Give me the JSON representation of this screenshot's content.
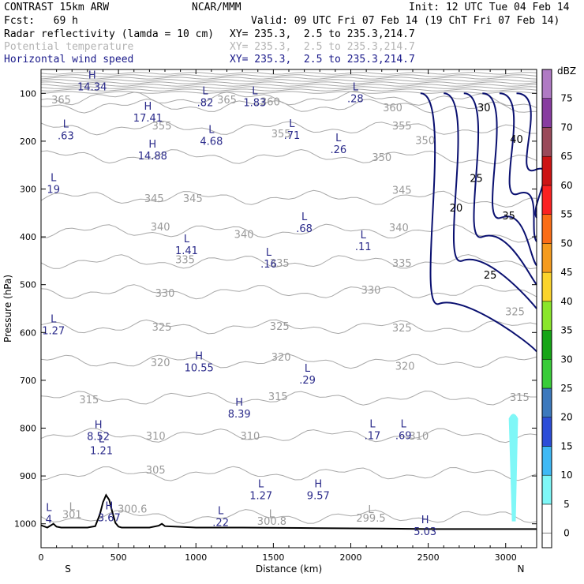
{
  "header": {
    "left1": "CONTRAST 15km ARW",
    "center1": "NCAR/MMM",
    "right1": "Init: 12 UTC Tue 04 Feb 14",
    "left2": "Fcst:   69 h",
    "right2": "Valid: 09 UTC Fri 07 Feb 14 (19 ChT Fri 07 Feb 14)",
    "field1_name": "Radar reflectivity (lamda = 10 cm)",
    "field1_xy": "XY= 235.3,  2.5 to 235.3,214.7",
    "field2_name": "Potential temperature",
    "field2_xy": "XY= 235.3,  2.5 to 235.3,214.7",
    "field3_name": "Horizontal wind speed",
    "field3_xy": "XY= 235.3,  2.5 to 235.3,214.7"
  },
  "colors": {
    "wind_label": "#2a2a8a",
    "theta": "#a8a8a8",
    "radar_contour": "#0a1070",
    "terrain": "#000000"
  },
  "chart_data": {
    "type": "cross-section",
    "xlabel": "Distance (km)",
    "ylabel": "Pressure (hPa)",
    "xlim": [
      0,
      3200
    ],
    "ylim": [
      1050,
      50
    ],
    "xticks": [
      0,
      500,
      1000,
      1500,
      2000,
      2500,
      3000
    ],
    "yticks": [
      100,
      200,
      300,
      400,
      500,
      600,
      700,
      800,
      900,
      1000
    ],
    "end_labels": {
      "left": "S",
      "right": "N"
    },
    "colorbar": {
      "unit": "dBZ",
      "levels": [
        0,
        5,
        10,
        15,
        20,
        25,
        30,
        35,
        40,
        45,
        50,
        55,
        60,
        65,
        70,
        75
      ],
      "colors": [
        "#ffffff",
        "#7ff7f7",
        "#3fb9f5",
        "#2c4dd8",
        "#3c79bd",
        "#39cc39",
        "#16a516",
        "#8ae62a",
        "#fbd42c",
        "#f59b1d",
        "#fb6d16",
        "#fb2121",
        "#cc1414",
        "#9a4a5a",
        "#883ca0",
        "#b07ac4"
      ]
    },
    "theta_contours": {
      "levels": [
        300,
        305,
        310,
        315,
        320,
        325,
        330,
        335,
        340,
        345,
        350,
        355,
        360,
        365
      ],
      "labels": [
        {
          "text": "365",
          "x": 130,
          "p": 113
        },
        {
          "text": "365",
          "x": 1200,
          "p": 113
        },
        {
          "text": "360",
          "x": 1480,
          "p": 117
        },
        {
          "text": "360",
          "x": 2270,
          "p": 129
        },
        {
          "text": "355",
          "x": 780,
          "p": 167
        },
        {
          "text": "355",
          "x": 1550,
          "p": 184
        },
        {
          "text": "355",
          "x": 2330,
          "p": 167
        },
        {
          "text": "350",
          "x": 2200,
          "p": 233
        },
        {
          "text": "350",
          "x": 2480,
          "p": 198
        },
        {
          "text": "345",
          "x": 730,
          "p": 319
        },
        {
          "text": "345",
          "x": 980,
          "p": 319
        },
        {
          "text": "345",
          "x": 2330,
          "p": 302
        },
        {
          "text": "340",
          "x": 770,
          "p": 378
        },
        {
          "text": "340",
          "x": 1310,
          "p": 394
        },
        {
          "text": "340",
          "x": 2310,
          "p": 380
        },
        {
          "text": "335",
          "x": 930,
          "p": 447
        },
        {
          "text": "335",
          "x": 1540,
          "p": 454
        },
        {
          "text": "335",
          "x": 2330,
          "p": 454
        },
        {
          "text": "330",
          "x": 800,
          "p": 517
        },
        {
          "text": "330",
          "x": 2130,
          "p": 510
        },
        {
          "text": "325",
          "x": 780,
          "p": 588
        },
        {
          "text": "325",
          "x": 1540,
          "p": 586
        },
        {
          "text": "325",
          "x": 2330,
          "p": 590
        },
        {
          "text": "325",
          "x": 3060,
          "p": 556
        },
        {
          "text": "320",
          "x": 770,
          "p": 662
        },
        {
          "text": "320",
          "x": 1550,
          "p": 651
        },
        {
          "text": "320",
          "x": 2350,
          "p": 670
        },
        {
          "text": "315",
          "x": 310,
          "p": 740
        },
        {
          "text": "315",
          "x": 1530,
          "p": 733
        },
        {
          "text": "315",
          "x": 3090,
          "p": 735
        },
        {
          "text": "310",
          "x": 740,
          "p": 816
        },
        {
          "text": "310",
          "x": 1350,
          "p": 816
        },
        {
          "text": "310",
          "x": 2440,
          "p": 816
        },
        {
          "text": "305",
          "x": 740,
          "p": 887
        },
        {
          "text": "300.6",
          "x": 590,
          "p": 968
        },
        {
          "text": "301",
          "x": 200,
          "p": 980
        },
        {
          "text": "300.8",
          "x": 1490,
          "p": 994
        },
        {
          "text": "299.5",
          "x": 2130,
          "p": 987
        }
      ],
      "extrema": [
        {
          "type": "L",
          "x": 200,
          "p": 963
        },
        {
          "type": "L",
          "x": 1490,
          "p": 978
        },
        {
          "type": "L",
          "x": 2130,
          "p": 969
        }
      ]
    },
    "wind_speed_extrema": [
      {
        "type": "H",
        "value": "14.34",
        "x": 330,
        "p": 79
      },
      {
        "type": "L",
        "value": ".82",
        "x": 1060,
        "p": 112
      },
      {
        "type": "L",
        "value": "1.83",
        "x": 1380,
        "p": 112
      },
      {
        "type": "L",
        "value": ".28",
        "x": 2030,
        "p": 104
      },
      {
        "type": "H",
        "value": "17.41",
        "x": 690,
        "p": 144
      },
      {
        "type": "L",
        "value": ".63",
        "x": 160,
        "p": 181
      },
      {
        "type": "L",
        "value": "4.68",
        "x": 1100,
        "p": 193
      },
      {
        "type": "L",
        "value": ".71",
        "x": 1620,
        "p": 180
      },
      {
        "type": "L",
        "value": ".26",
        "x": 1920,
        "p": 210
      },
      {
        "type": "H",
        "value": "14.88",
        "x": 720,
        "p": 223
      },
      {
        "type": "L",
        "value": "19",
        "x": 80,
        "p": 293
      },
      {
        "type": "L",
        "value": ".68",
        "x": 1700,
        "p": 375
      },
      {
        "type": "L",
        "value": "1.41",
        "x": 940,
        "p": 421
      },
      {
        "type": "L",
        "value": ".11",
        "x": 2080,
        "p": 413
      },
      {
        "type": "L",
        "value": ".16",
        "x": 1470,
        "p": 449
      },
      {
        "type": "L",
        "value": "1.27",
        "x": 80,
        "p": 589
      },
      {
        "type": "H",
        "value": "10.55",
        "x": 1020,
        "p": 666
      },
      {
        "type": "L",
        "value": ".29",
        "x": 1720,
        "p": 692
      },
      {
        "type": "H",
        "value": "8.39",
        "x": 1280,
        "p": 763
      },
      {
        "type": "H",
        "value": "8.52",
        "x": 370,
        "p": 810
      },
      {
        "type": "L",
        "value": ".17",
        "x": 2140,
        "p": 808
      },
      {
        "type": "L",
        "value": ".69",
        "x": 2340,
        "p": 808
      },
      {
        "type": "L",
        "value": "1.21",
        "x": 390,
        "p": 840
      },
      {
        "type": "L",
        "value": "1.27",
        "x": 1420,
        "p": 934
      },
      {
        "type": "H",
        "value": "9.57",
        "x": 1790,
        "p": 934
      },
      {
        "type": "H",
        "value": "3.67",
        "x": 440,
        "p": 980
      },
      {
        "type": "L",
        "value": ".22",
        "x": 1160,
        "p": 990
      },
      {
        "type": "H",
        "value": "5.03",
        "x": 2480,
        "p": 1009
      },
      {
        "type": "L",
        "value": "4",
        "x": 50,
        "p": 983
      }
    ],
    "reflectivity_contour_labels": [
      {
        "text": "30",
        "x": 2860,
        "p": 129
      },
      {
        "text": "40",
        "x": 3070,
        "p": 195
      },
      {
        "text": "25",
        "x": 2810,
        "p": 277
      },
      {
        "text": "20",
        "x": 2680,
        "p": 339
      },
      {
        "text": "35",
        "x": 3020,
        "p": 355
      },
      {
        "text": "25",
        "x": 2900,
        "p": 479
      }
    ],
    "terrain_surface_pressure": {
      "x": [
        0,
        40,
        60,
        80,
        100,
        130,
        160,
        220,
        300,
        350,
        380,
        400,
        420,
        440,
        460,
        480,
        500,
        520,
        560,
        700,
        760,
        780,
        800,
        1000,
        1300,
        1800,
        2200,
        2500,
        2800,
        3100,
        3200
      ],
      "p": [
        1003,
        1008,
        1004,
        1000,
        1006,
        1008,
        1008,
        1008,
        1008,
        1005,
        980,
        955,
        940,
        950,
        975,
        998,
        1006,
        1008,
        1008,
        1008,
        1004,
        1000,
        1005,
        1008,
        1008,
        1009,
        1010,
        1011,
        1011,
        1011,
        1011
      ]
    }
  }
}
